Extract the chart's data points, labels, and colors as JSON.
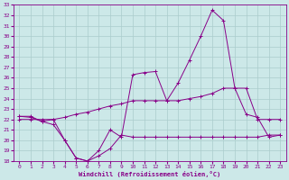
{
  "xlabel": "Windchill (Refroidissement éolien,°C)",
  "background_color": "#cce8e8",
  "grid_color": "#aacccc",
  "line_color": "#880088",
  "xlim": [
    -0.5,
    23.5
  ],
  "ylim": [
    18,
    33
  ],
  "yticks": [
    18,
    19,
    20,
    21,
    22,
    23,
    24,
    25,
    26,
    27,
    28,
    29,
    30,
    31,
    32,
    33
  ],
  "xticks": [
    0,
    1,
    2,
    3,
    4,
    5,
    6,
    7,
    8,
    9,
    10,
    11,
    12,
    13,
    14,
    15,
    16,
    17,
    18,
    19,
    20,
    21,
    22,
    23
  ],
  "series1_x": [
    0,
    1,
    2,
    3,
    4,
    5,
    6,
    7,
    8,
    9,
    10,
    11,
    12,
    13,
    14,
    15,
    16,
    17,
    18,
    19,
    20,
    21,
    22,
    23
  ],
  "series1_y": [
    22,
    22,
    22,
    22,
    20.0,
    18.3,
    18.0,
    18.5,
    19.2,
    20.5,
    20.3,
    20.3,
    20.3,
    20.3,
    20.3,
    20.3,
    20.3,
    20.3,
    20.3,
    20.3,
    20.3,
    20.3,
    20.5,
    20.5
  ],
  "series2_x": [
    0,
    1,
    2,
    3,
    4,
    5,
    6,
    7,
    8,
    9,
    10,
    11,
    12,
    13,
    14,
    15,
    16,
    17,
    18,
    19,
    20,
    21,
    22,
    23
  ],
  "series2_y": [
    22.3,
    22.3,
    21.8,
    22.0,
    22.2,
    22.5,
    22.7,
    23.0,
    23.3,
    23.5,
    23.8,
    23.8,
    23.8,
    23.8,
    23.8,
    24.0,
    24.2,
    24.5,
    25.0,
    25.0,
    25.0,
    22.0,
    22.0,
    22.0
  ],
  "series3_x": [
    0,
    1,
    2,
    3,
    4,
    5,
    6,
    7,
    8,
    9,
    10,
    11,
    12,
    13,
    14,
    15,
    16,
    17,
    18,
    19,
    20,
    21,
    22,
    23
  ],
  "series3_y": [
    22.3,
    22.2,
    21.8,
    21.5,
    20.0,
    18.3,
    18.0,
    19.0,
    21.0,
    20.3,
    26.3,
    26.5,
    26.6,
    23.8,
    25.5,
    27.7,
    30.0,
    32.5,
    31.5,
    25.0,
    22.5,
    22.2,
    20.3,
    20.5
  ]
}
